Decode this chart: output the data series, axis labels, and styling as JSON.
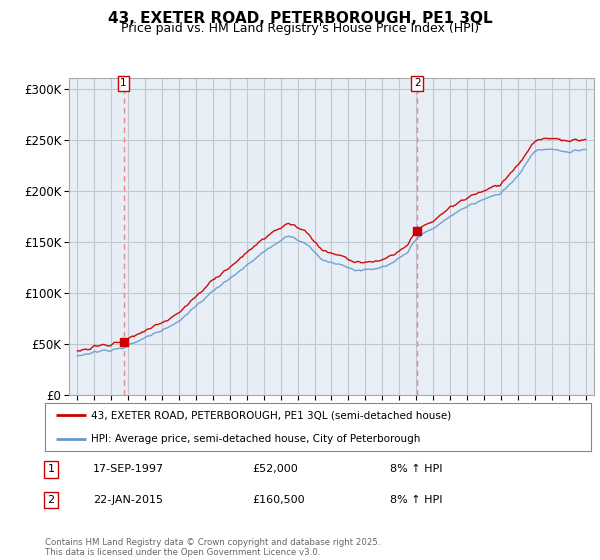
{
  "title": "43, EXETER ROAD, PETERBOROUGH, PE1 3QL",
  "subtitle": "Price paid vs. HM Land Registry's House Price Index (HPI)",
  "title_fontsize": 11,
  "subtitle_fontsize": 9,
  "background_color": "#ffffff",
  "plot_bg_color": "#e8eef5",
  "grid_color": "#c0c8d0",
  "sale1_x": 1997.72,
  "sale1_y": 52000,
  "sale2_x": 2015.06,
  "sale2_y": 160500,
  "red_line_color": "#cc0000",
  "blue_line_color": "#6699cc",
  "dashed_line_color": "#ee8888",
  "marker_color": "#cc0000",
  "ylim": [
    0,
    310000
  ],
  "xlim": [
    1994.5,
    2025.5
  ],
  "yticks": [
    0,
    50000,
    100000,
    150000,
    200000,
    250000,
    300000
  ],
  "ytick_labels": [
    "£0",
    "£50K",
    "£100K",
    "£150K",
    "£200K",
    "£250K",
    "£300K"
  ],
  "xticks": [
    1995,
    1996,
    1997,
    1998,
    1999,
    2000,
    2001,
    2002,
    2003,
    2004,
    2005,
    2006,
    2007,
    2008,
    2009,
    2010,
    2011,
    2012,
    2013,
    2014,
    2015,
    2016,
    2017,
    2018,
    2019,
    2020,
    2021,
    2022,
    2023,
    2024,
    2025
  ],
  "legend_red_label": "43, EXETER ROAD, PETERBOROUGH, PE1 3QL (semi-detached house)",
  "legend_blue_label": "HPI: Average price, semi-detached house, City of Peterborough",
  "annotation1_date": "17-SEP-1997",
  "annotation1_price": "£52,000",
  "annotation1_hpi": "8% ↑ HPI",
  "annotation2_date": "22-JAN-2015",
  "annotation2_price": "£160,500",
  "annotation2_hpi": "8% ↑ HPI",
  "footer": "Contains HM Land Registry data © Crown copyright and database right 2025.\nThis data is licensed under the Open Government Licence v3.0."
}
